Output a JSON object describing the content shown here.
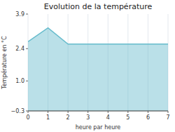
{
  "chart_data": {
    "type": "area",
    "title": "Evolution de la température",
    "x_label": "heure par heure",
    "y_label": "Température en °C",
    "x": [
      0,
      1,
      2,
      3,
      4,
      5,
      6,
      7
    ],
    "values": [
      2.7,
      3.3,
      2.6,
      2.6,
      2.6,
      2.6,
      2.6,
      2.6
    ],
    "color": "#66bbcc",
    "xlim": [
      0,
      7
    ],
    "ylim": [
      -0.3,
      3.9
    ],
    "xticks": [
      0,
      1,
      2,
      3,
      4,
      5,
      6,
      7
    ],
    "yticks": [
      {
        "value": -0.3,
        "label": "−0.3"
      },
      {
        "value": 1.0,
        "label": "1.0"
      },
      2.4,
      3.9
    ],
    "grid": "x"
  }
}
